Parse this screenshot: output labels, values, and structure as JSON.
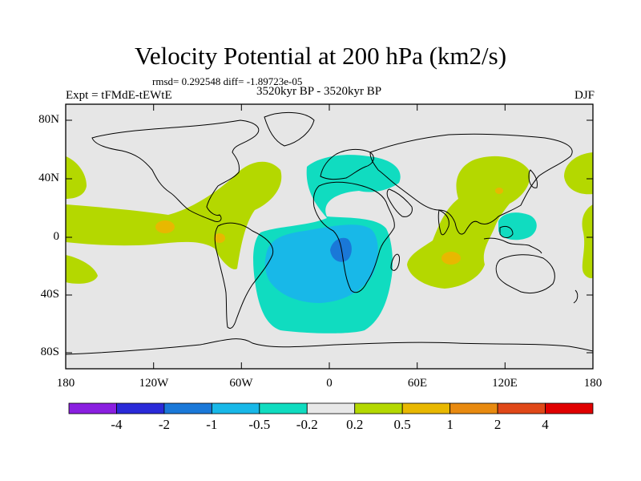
{
  "title": "Velocity Potential at 200 hPa (km2/s)",
  "stats": "rmsd= 0.292548 diff= -1.89723e-05",
  "experiment": "Expt = tFMdE-tEWtE",
  "period": "3520kyr BP - 3520kyr BP",
  "season": "DJF",
  "lat_labels": [
    "80N",
    "40N",
    "0",
    "40S",
    "80S"
  ],
  "lon_labels": [
    "180",
    "120W",
    "60W",
    "0",
    "60E",
    "120E",
    "180"
  ],
  "colorbar": {
    "labels": [
      "-4",
      "-2",
      "-1",
      "-0.5",
      "-0.2",
      "0.2",
      "0.5",
      "1",
      "2",
      "4"
    ],
    "colors": [
      "#8a1fe0",
      "#2a2ad8",
      "#1a78d8",
      "#18b8e8",
      "#10dcc0",
      "#e8e8e8",
      "#b4d800",
      "#e8b800",
      "#e88a10",
      "#e04818",
      "#e00000"
    ]
  },
  "palette": {
    "ocean": "#e6e6e6",
    "pos_weak": "#b4d800",
    "pos_mid": "#e8b800",
    "neg_weak": "#10dcc0",
    "neg_mid": "#18b8e8",
    "neg_strong": "#1a78d8",
    "coast": "#000000"
  }
}
